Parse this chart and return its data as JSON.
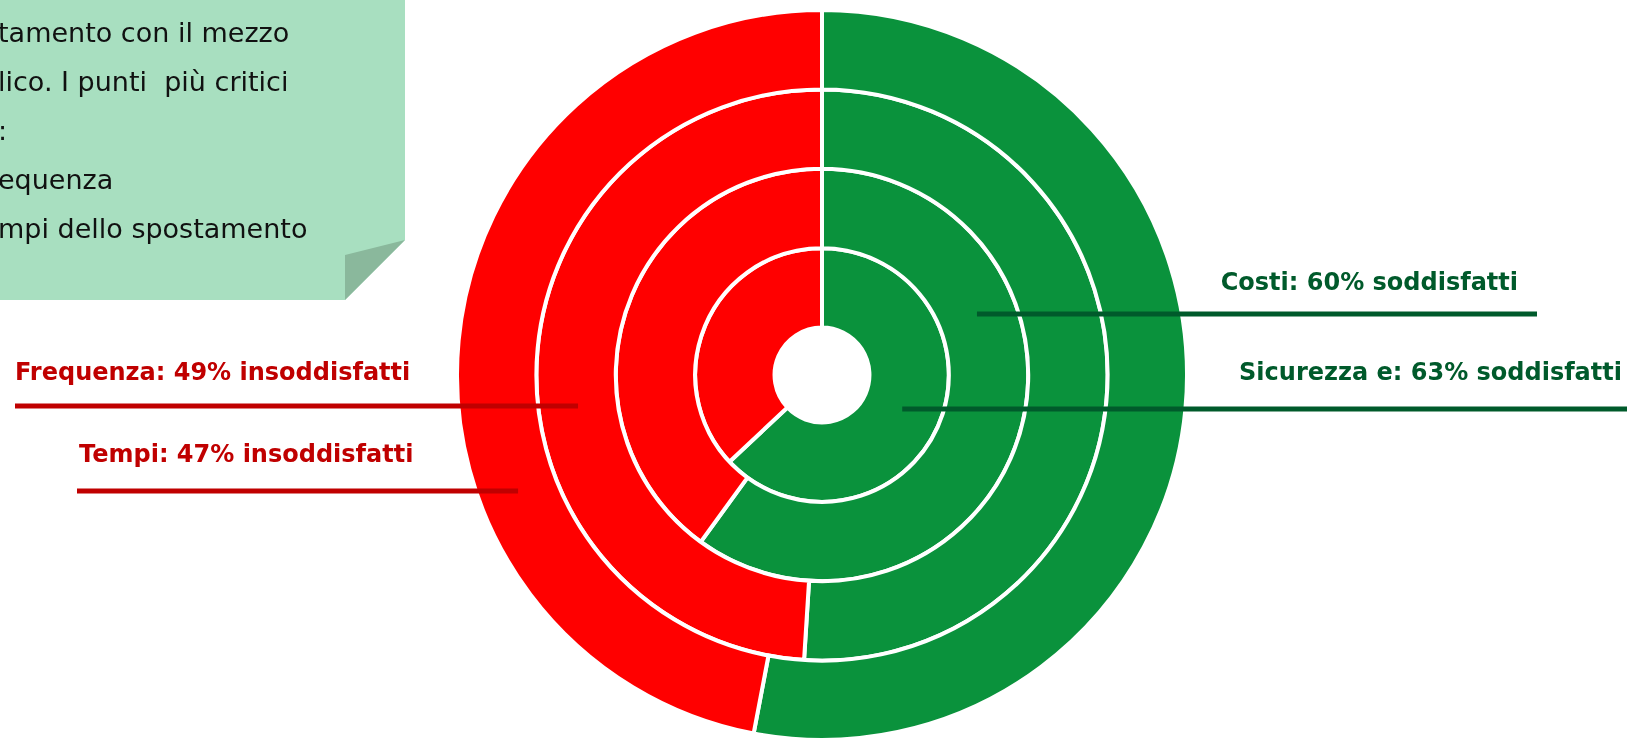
{
  "chart_data": {
    "type": "donut",
    "categories": [
      null,
      null
    ],
    "legend": false,
    "series": [
      {
        "values": [
          53,
          47
        ],
        "colors": [
          "#0a923c",
          "#ff0000"
        ],
        "value_labels": [
          null,
          "Tempi: 47% insoddisfatti"
        ]
      },
      {
        "values": [
          51,
          49
        ],
        "colors": [
          "#0a923c",
          "#ff0000"
        ],
        "value_labels": [
          null,
          "Frequenza: 49% insoddisfatti"
        ]
      },
      {
        "values": [
          60,
          40
        ],
        "colors": [
          "#0a923c",
          "#ff0000"
        ],
        "value_labels": [
          "Costi: 60% soddisfatti",
          null
        ]
      },
      {
        "values": [
          63,
          37
        ],
        "colors": [
          "#0a923c",
          "#ff0000"
        ],
        "value_labels": [
          "Sicurezza e: 63% soddisfatti",
          null
        ]
      }
    ],
    "annotations": [
      "tamento con il mezzo",
      "lico. I punti  più critici",
      ":",
      "equenza",
      "mpi dello spostamento"
    ]
  }
}
